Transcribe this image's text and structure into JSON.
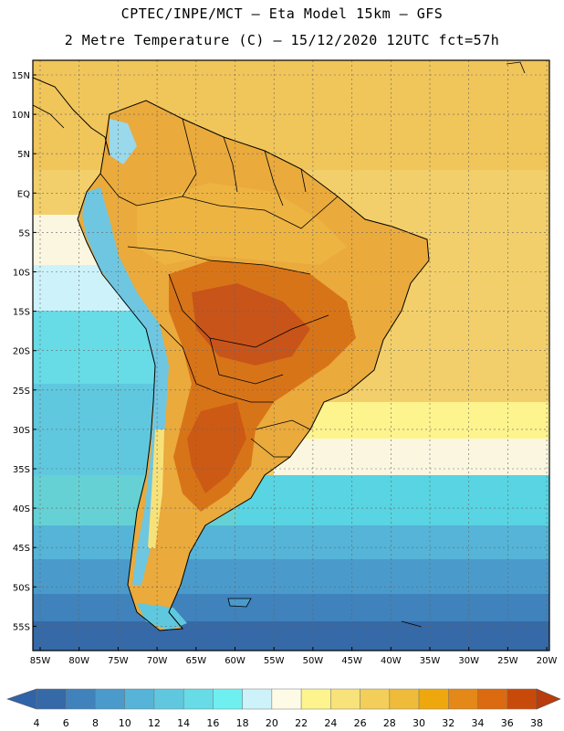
{
  "header": {
    "line1": "CPTEC/INPE/MCT –  Eta Model 15km – GFS",
    "line2": "2 Metre Temperature (C) – 15/12/2020 12UTC fct=57h"
  },
  "map": {
    "lat_ticks": [
      "15N",
      "10N",
      "5N",
      "EQ",
      "5S",
      "10S",
      "15S",
      "20S",
      "25S",
      "30S",
      "35S",
      "40S",
      "45S",
      "50S",
      "55S"
    ],
    "lon_ticks": [
      "85W",
      "80W",
      "75W",
      "70W",
      "65W",
      "60W",
      "55W",
      "50W",
      "45W",
      "40W",
      "35W",
      "30W",
      "25W",
      "20W"
    ],
    "grid": true
  },
  "colorbar": {
    "labels": [
      "4",
      "6",
      "8",
      "10",
      "12",
      "14",
      "16",
      "18",
      "20",
      "22",
      "24",
      "26",
      "28",
      "30",
      "32",
      "34",
      "36",
      "38"
    ],
    "colors": [
      "#3569a8",
      "#3f82bc",
      "#4a9bcb",
      "#55b4d7",
      "#5fc8df",
      "#67dbe6",
      "#6ff0f0",
      "#cdf2fa",
      "#fdfbe6",
      "#fdf48e",
      "#f8e27a",
      "#f3cf5a",
      "#eebb3a",
      "#eea80e",
      "#e48818",
      "#dc6a10",
      "#c84a0a"
    ],
    "end_low": "#3064a8",
    "end_high": "#b83c0c"
  }
}
